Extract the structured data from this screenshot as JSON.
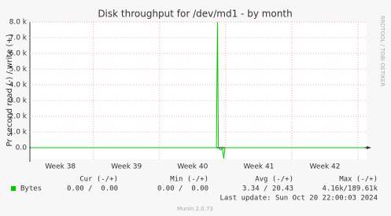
{
  "chart_data": {
    "type": "line",
    "title": "Disk throughput for /dev/md1 - by month",
    "y_label": "Pr second read (-) / write (+)",
    "side_label": "RRDTOOL / TOBI OETIKER",
    "x": [
      37.55,
      40.36,
      40.375,
      40.39,
      40.41,
      40.43,
      40.45,
      40.47,
      40.49,
      42.6
    ],
    "series": [
      {
        "name": "Bytes",
        "color": "#00cc00",
        "values": [
          0,
          0,
          8000,
          0,
          -100,
          -150,
          0,
          -700,
          0,
          0
        ],
        "stats": [
          "0.00 /  0.00",
          "0.00 /  0.00",
          "3.34 / 20.43",
          "4.16k/189.61k"
        ]
      }
    ],
    "stat_headers": [
      "Cur (-/+)",
      "Min (-/+)",
      "Avg (-/+)",
      "Max (-/+)"
    ],
    "last_update": "Last update: Sun Oct 20 22:00:03 2024",
    "footer": "Munin 2.0.73",
    "xlim": [
      37.54,
      42.63
    ],
    "xticks": [
      {
        "value": 38,
        "label": "Week 38"
      },
      {
        "value": 39,
        "label": "Week 39"
      },
      {
        "value": 40,
        "label": "Week 40"
      },
      {
        "value": 41,
        "label": "Week 41"
      },
      {
        "value": 42,
        "label": "Week 42"
      }
    ],
    "ylim": [
      -750,
      8000
    ],
    "yticks": [
      {
        "value": 0,
        "label": "0.0"
      },
      {
        "value": 1000,
        "label": "1.0 k"
      },
      {
        "value": 2000,
        "label": "2.0 k"
      },
      {
        "value": 3000,
        "label": "3.0 k"
      },
      {
        "value": 4000,
        "label": "4.0 k"
      },
      {
        "value": 5000,
        "label": "5.0 k"
      },
      {
        "value": 6000,
        "label": "6.0 k"
      },
      {
        "value": 7000,
        "label": "7.0 k"
      },
      {
        "value": 8000,
        "label": "8.0 k"
      }
    ],
    "grid": true
  }
}
